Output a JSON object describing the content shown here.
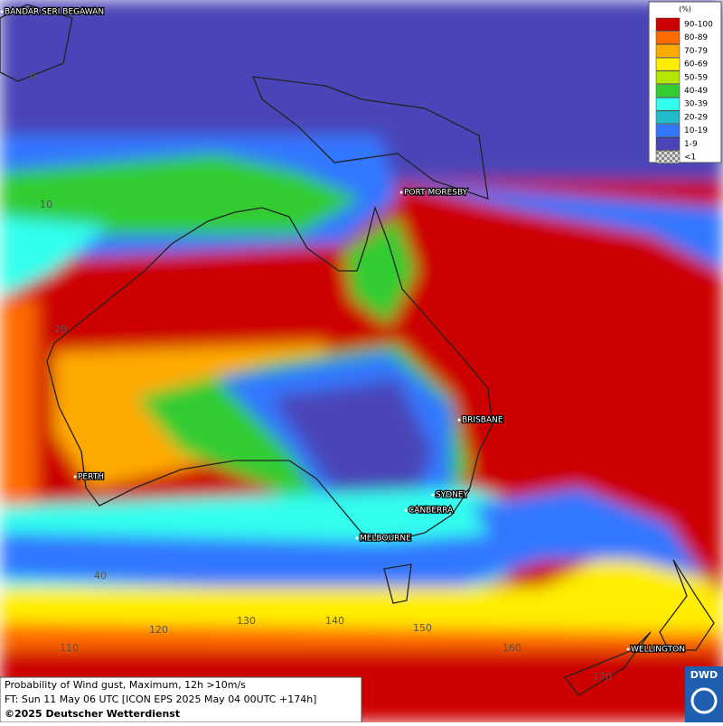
{
  "map": {
    "legend": {
      "title": "(%)",
      "items": [
        {
          "label": "90-100",
          "color": "#cc0000"
        },
        {
          "label": "80-89",
          "color": "#ff6a00"
        },
        {
          "label": "70-79",
          "color": "#ffaa00"
        },
        {
          "label": "60-69",
          "color": "#ffee00"
        },
        {
          "label": "50-59",
          "color": "#b4e600"
        },
        {
          "label": "40-49",
          "color": "#33cc33"
        },
        {
          "label": "30-39",
          "color": "#33ffee"
        },
        {
          "label": "20-29",
          "color": "#22bbcc"
        },
        {
          "label": "10-19",
          "color": "#3377ff"
        },
        {
          "label": "1-9",
          "color": "#4a44b8"
        },
        {
          "label": "<1",
          "color": "#bbbbbb"
        }
      ]
    },
    "cities": [
      "BANDAR SERI BEGAWAN",
      "PORT MORESBY",
      "BRISBANE",
      "PERTH",
      "SYDNEY",
      "CANBERRA",
      "MELBOURNE",
      "WELLINGTON"
    ],
    "grid_labels": [
      "0",
      "10",
      "20",
      "40",
      "110",
      "120",
      "130",
      "140",
      "150",
      "160",
      "170"
    ],
    "caption": [
      "Probability of Wind gust, Maximum, 12h >10m/s",
      "FT: Sun 11 May 06 UTC [ICON EPS 2025 May 04 00UTC +174h]",
      "©2025 Deutscher Wetterdienst"
    ],
    "logo": "DWD"
  }
}
